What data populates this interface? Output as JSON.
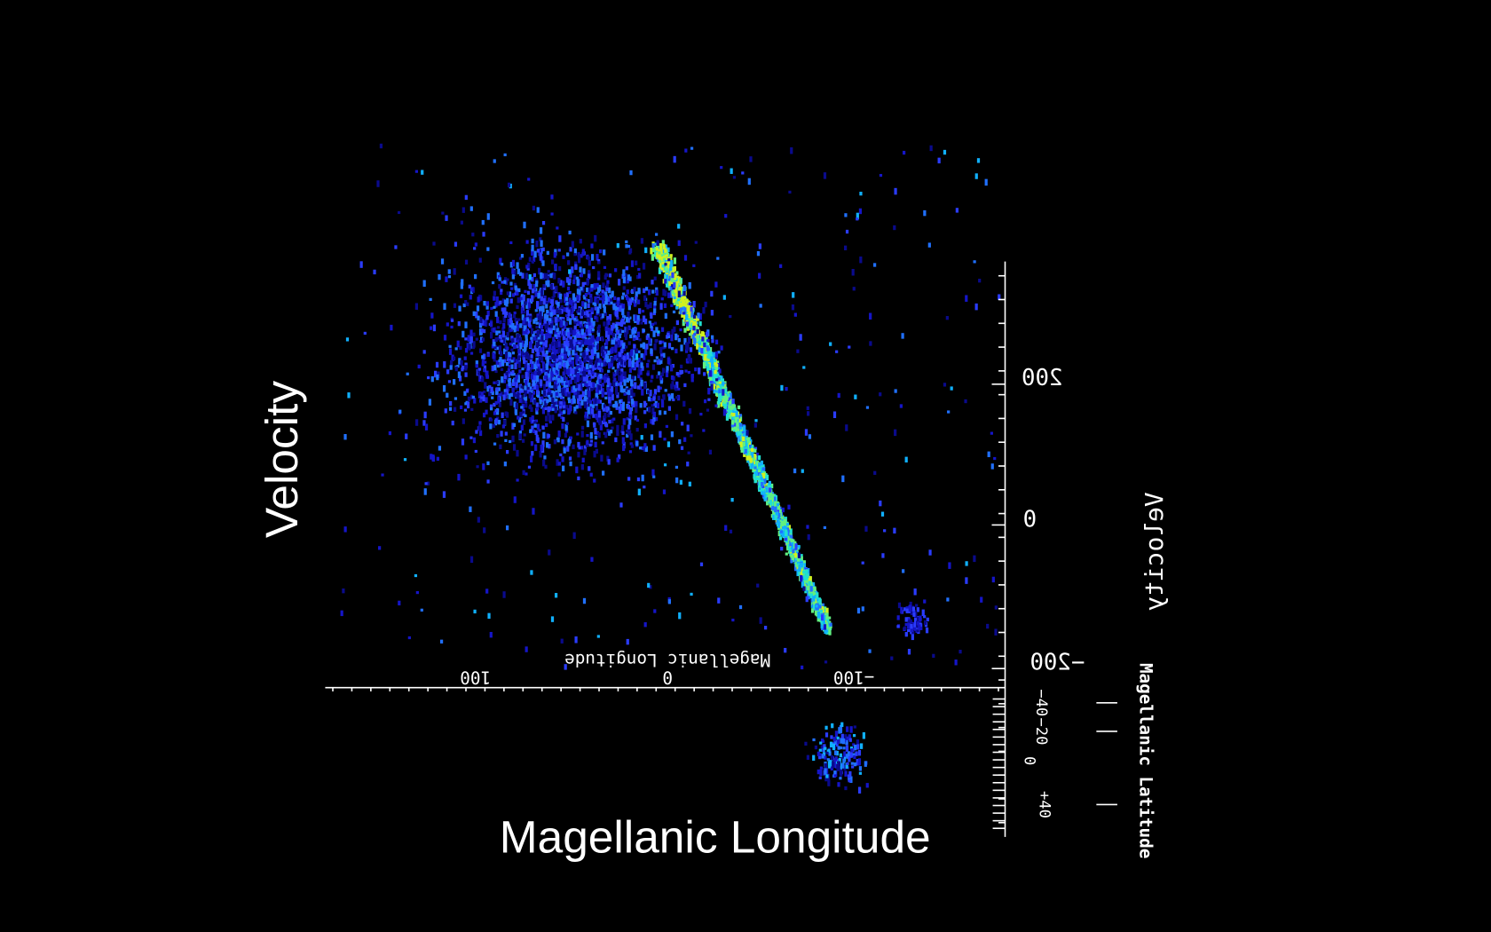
{
  "screen_labels": {
    "vertical": "Velocity",
    "horizontal": "Magellanic Longitude"
  },
  "velocity_axis": {
    "title": "Velocity",
    "ticks": [
      "200",
      "0",
      "−200"
    ]
  },
  "longitude_axis": {
    "title": "Magellanic Longitude",
    "ticks": [
      "100",
      "0",
      "−100"
    ]
  },
  "latitude_axis": {
    "title": "Magellanic Latitude",
    "ticks": [
      "−40",
      "−20",
      "0",
      "+40"
    ]
  }
}
